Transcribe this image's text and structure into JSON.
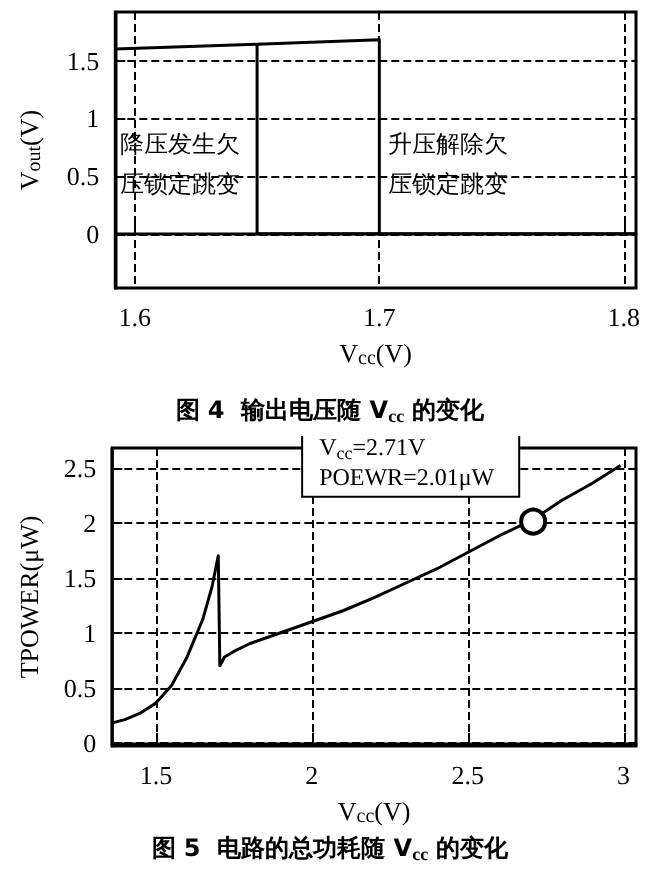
{
  "chart_data": [
    {
      "type": "line",
      "title": "图 4  输出电压随 V$_{cc}$ 的变化",
      "xlabel": "V$_{cc}$(V)",
      "ylabel": "V$_{out}$(V)",
      "xlim": [
        1.592,
        1.805
      ],
      "ylim": [
        -0.47,
        1.92
      ],
      "xticks": [
        1.6,
        1.7,
        1.8
      ],
      "yticks": [
        0,
        0.5,
        1,
        1.5
      ],
      "grid": true,
      "series": [
        {
          "color": "#000000",
          "x": [
            1.592,
            1.65,
            1.7,
            1.7
          ],
          "values": [
            1.6,
            1.64,
            1.68,
            0
          ]
        },
        {
          "color": "#000000",
          "x": [
            1.65,
            1.65,
            1.805
          ],
          "values": [
            1.64,
            0,
            0
          ]
        }
      ],
      "annotations": [
        "降压发生欠压锁定跳变",
        "升压解除欠压锁定跳变"
      ]
    },
    {
      "type": "line",
      "title": "图 5  电路的总功耗随 V$_{cc}$ 的变化",
      "xlabel": "V$_{cc}$(V)",
      "ylabel": "TPOWER(μW)",
      "xlim": [
        1.36,
        3.04
      ],
      "ylim": [
        -0.03,
        2.68
      ],
      "xticks": [
        1.5,
        2,
        2.5,
        3
      ],
      "yticks": [
        0,
        0.5,
        1,
        1.5,
        2,
        2.5
      ],
      "grid": true,
      "series": [
        {
          "color": "#000000",
          "x": [
            1.36,
            1.4,
            1.45,
            1.5,
            1.55,
            1.6,
            1.65,
            1.68,
            1.7,
            1.705,
            1.72,
            1.75,
            1.8,
            1.9,
            2,
            2.1,
            2.2,
            2.3,
            2.4,
            2.5,
            2.6,
            2.71,
            2.8,
            2.9,
            2.99
          ],
          "values": [
            0.18,
            0.21,
            0.27,
            0.36,
            0.52,
            0.78,
            1.12,
            1.42,
            1.7,
            0.7,
            0.78,
            0.83,
            0.9,
            1.0,
            1.1,
            1.2,
            1.32,
            1.45,
            1.58,
            1.73,
            1.88,
            2.03,
            2.2,
            2.36,
            2.52
          ]
        }
      ],
      "annotations": [
        {
          "text": "V$_{cc}$=2.71V\nPOEWR=2.01μW",
          "x": 2.71,
          "y": 2.01
        }
      ]
    }
  ]
}
